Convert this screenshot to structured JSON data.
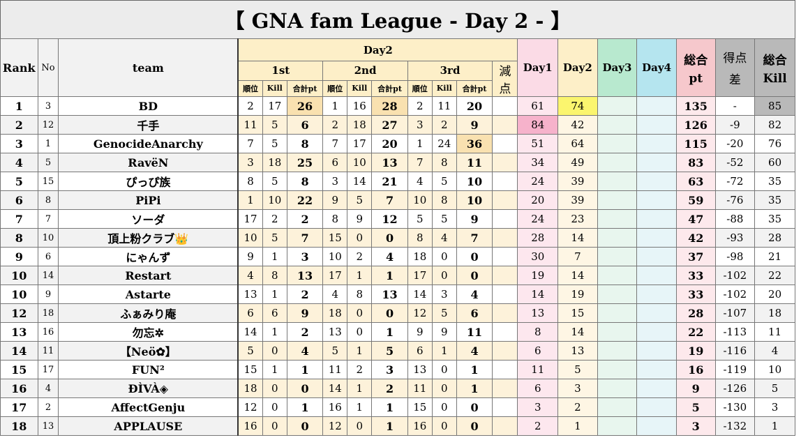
{
  "title": "【 GNA fam League - Day 2 - 】",
  "headers": {
    "rank": "Rank",
    "no": "No",
    "team": "team",
    "day2": "Day2",
    "game1": "1st",
    "game2": "2nd",
    "game3": "3rd",
    "penalty_line1": "減",
    "penalty_line2": "点",
    "day1": "Day1",
    "day2_col": "Day2",
    "day3": "Day3",
    "day4": "Day4",
    "total_line1": "総合",
    "total_line2": "pt",
    "diff_line1": "得点",
    "diff_line2": "差",
    "kill_line1": "総合",
    "kill_line2": "Kill",
    "placement": "順位",
    "kill": "Kill",
    "subtotal": "合計pt"
  },
  "rows": [
    {
      "rank": "1",
      "no": "3",
      "team": "BD",
      "g1": [
        "2",
        "17",
        "26"
      ],
      "g2": [
        "1",
        "16",
        "28"
      ],
      "g3": [
        "2",
        "11",
        "20"
      ],
      "pen": "",
      "day1": "61",
      "day2": "74",
      "day3": "",
      "day4": "",
      "total": "135",
      "diff": "-",
      "kills": "85"
    },
    {
      "rank": "2",
      "no": "12",
      "team": "千手",
      "g1": [
        "11",
        "5",
        "6"
      ],
      "g2": [
        "2",
        "18",
        "27"
      ],
      "g3": [
        "3",
        "2",
        "9"
      ],
      "pen": "",
      "day1": "84",
      "day2": "42",
      "day3": "",
      "day4": "",
      "total": "126",
      "diff": "-9",
      "kills": "82"
    },
    {
      "rank": "3",
      "no": "1",
      "team": "GenocideAnarchy",
      "g1": [
        "7",
        "5",
        "8"
      ],
      "g2": [
        "7",
        "17",
        "20"
      ],
      "g3": [
        "1",
        "24",
        "36"
      ],
      "pen": "",
      "day1": "51",
      "day2": "64",
      "day3": "",
      "day4": "",
      "total": "115",
      "diff": "-20",
      "kills": "76"
    },
    {
      "rank": "4",
      "no": "5",
      "team": "RavëN",
      "g1": [
        "3",
        "18",
        "25"
      ],
      "g2": [
        "6",
        "10",
        "13"
      ],
      "g3": [
        "7",
        "8",
        "11"
      ],
      "pen": "",
      "day1": "34",
      "day2": "49",
      "day3": "",
      "day4": "",
      "total": "83",
      "diff": "-52",
      "kills": "60"
    },
    {
      "rank": "5",
      "no": "15",
      "team": "ぴっぴ族",
      "g1": [
        "8",
        "5",
        "8"
      ],
      "g2": [
        "3",
        "14",
        "21"
      ],
      "g3": [
        "4",
        "5",
        "10"
      ],
      "pen": "",
      "day1": "24",
      "day2": "39",
      "day3": "",
      "day4": "",
      "total": "63",
      "diff": "-72",
      "kills": "35"
    },
    {
      "rank": "6",
      "no": "8",
      "team": "PiPi",
      "g1": [
        "1",
        "10",
        "22"
      ],
      "g2": [
        "9",
        "5",
        "7"
      ],
      "g3": [
        "10",
        "8",
        "10"
      ],
      "pen": "",
      "day1": "20",
      "day2": "39",
      "day3": "",
      "day4": "",
      "total": "59",
      "diff": "-76",
      "kills": "35"
    },
    {
      "rank": "7",
      "no": "7",
      "team": "ソーダ",
      "g1": [
        "17",
        "2",
        "2"
      ],
      "g2": [
        "8",
        "9",
        "12"
      ],
      "g3": [
        "5",
        "5",
        "9"
      ],
      "pen": "",
      "day1": "24",
      "day2": "23",
      "day3": "",
      "day4": "",
      "total": "47",
      "diff": "-88",
      "kills": "35"
    },
    {
      "rank": "8",
      "no": "10",
      "team": "頂上粉クラブ👑",
      "g1": [
        "10",
        "5",
        "7"
      ],
      "g2": [
        "15",
        "0",
        "0"
      ],
      "g3": [
        "8",
        "4",
        "7"
      ],
      "pen": "",
      "day1": "28",
      "day2": "14",
      "day3": "",
      "day4": "",
      "total": "42",
      "diff": "-93",
      "kills": "28"
    },
    {
      "rank": "9",
      "no": "6",
      "team": "にゃんず",
      "g1": [
        "9",
        "1",
        "3"
      ],
      "g2": [
        "10",
        "2",
        "4"
      ],
      "g3": [
        "18",
        "0",
        "0"
      ],
      "pen": "",
      "day1": "30",
      "day2": "7",
      "day3": "",
      "day4": "",
      "total": "37",
      "diff": "-98",
      "kills": "21"
    },
    {
      "rank": "10",
      "no": "14",
      "team": "Restart",
      "g1": [
        "4",
        "8",
        "13"
      ],
      "g2": [
        "17",
        "1",
        "1"
      ],
      "g3": [
        "17",
        "0",
        "0"
      ],
      "pen": "",
      "day1": "19",
      "day2": "14",
      "day3": "",
      "day4": "",
      "total": "33",
      "diff": "-102",
      "kills": "22"
    },
    {
      "rank": "10",
      "no": "9",
      "team": "Astarte",
      "g1": [
        "13",
        "1",
        "2"
      ],
      "g2": [
        "4",
        "8",
        "13"
      ],
      "g3": [
        "14",
        "3",
        "4"
      ],
      "pen": "",
      "day1": "14",
      "day2": "19",
      "day3": "",
      "day4": "",
      "total": "33",
      "diff": "-102",
      "kills": "20"
    },
    {
      "rank": "12",
      "no": "18",
      "team": "ふぁみり庵",
      "g1": [
        "6",
        "6",
        "9"
      ],
      "g2": [
        "18",
        "0",
        "0"
      ],
      "g3": [
        "12",
        "5",
        "6"
      ],
      "pen": "",
      "day1": "13",
      "day2": "15",
      "day3": "",
      "day4": "",
      "total": "28",
      "diff": "-107",
      "kills": "18"
    },
    {
      "rank": "13",
      "no": "16",
      "team": "勿忘✲",
      "g1": [
        "14",
        "1",
        "2"
      ],
      "g2": [
        "13",
        "0",
        "1"
      ],
      "g3": [
        "9",
        "9",
        "11"
      ],
      "pen": "",
      "day1": "8",
      "day2": "14",
      "day3": "",
      "day4": "",
      "total": "22",
      "diff": "-113",
      "kills": "11"
    },
    {
      "rank": "14",
      "no": "11",
      "team": "【Neö✿】",
      "g1": [
        "5",
        "0",
        "4"
      ],
      "g2": [
        "5",
        "1",
        "5"
      ],
      "g3": [
        "6",
        "1",
        "4"
      ],
      "pen": "",
      "day1": "6",
      "day2": "13",
      "day3": "",
      "day4": "",
      "total": "19",
      "diff": "-116",
      "kills": "4"
    },
    {
      "rank": "15",
      "no": "17",
      "team": "FUN²",
      "g1": [
        "15",
        "1",
        "1"
      ],
      "g2": [
        "11",
        "2",
        "3"
      ],
      "g3": [
        "13",
        "0",
        "1"
      ],
      "pen": "",
      "day1": "11",
      "day2": "5",
      "day3": "",
      "day4": "",
      "total": "16",
      "diff": "-119",
      "kills": "10"
    },
    {
      "rank": "16",
      "no": "4",
      "team": "ĐÌVÀ◈",
      "g1": [
        "18",
        "0",
        "0"
      ],
      "g2": [
        "14",
        "1",
        "2"
      ],
      "g3": [
        "11",
        "0",
        "1"
      ],
      "pen": "",
      "day1": "6",
      "day2": "3",
      "day3": "",
      "day4": "",
      "total": "9",
      "diff": "-126",
      "kills": "5"
    },
    {
      "rank": "17",
      "no": "2",
      "team": "AffectGenju",
      "g1": [
        "12",
        "0",
        "1"
      ],
      "g2": [
        "16",
        "1",
        "1"
      ],
      "g3": [
        "15",
        "0",
        "0"
      ],
      "pen": "",
      "day1": "3",
      "day2": "2",
      "day3": "",
      "day4": "",
      "total": "5",
      "diff": "-130",
      "kills": "3"
    },
    {
      "rank": "18",
      "no": "13",
      "team": "APPLAUSE",
      "g1": [
        "16",
        "0",
        "0"
      ],
      "g2": [
        "12",
        "0",
        "1"
      ],
      "g3": [
        "16",
        "0",
        "0"
      ],
      "pen": "",
      "day1": "2",
      "day2": "1",
      "day3": "",
      "day4": "",
      "total": "3",
      "diff": "-132",
      "kills": "1"
    }
  ],
  "highlights": {
    "game_best_color": "#f9e1b0",
    "day2_best_color": "#fbf56e",
    "day1_best_color": "#f6b2cb",
    "kills_best_color": "#b9b9b9"
  }
}
